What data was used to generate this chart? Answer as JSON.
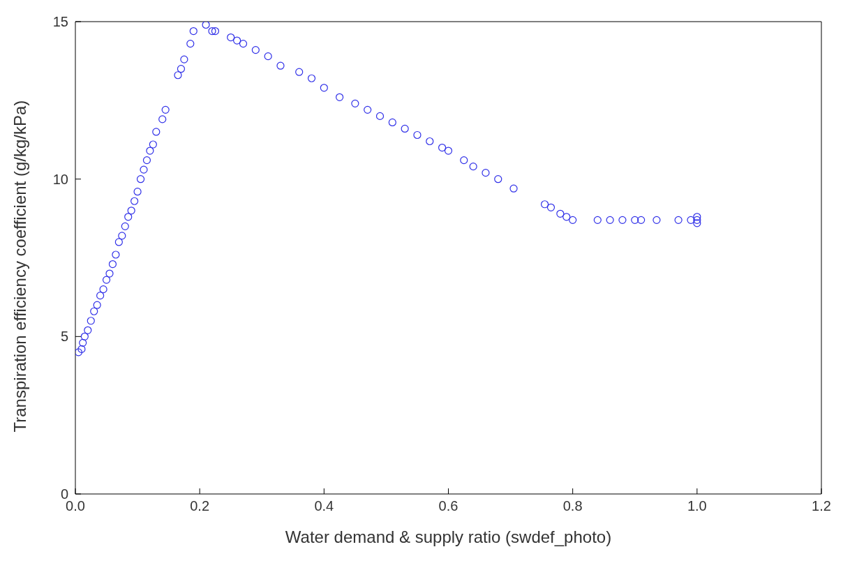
{
  "chart_data": {
    "type": "scatter",
    "xlabel": "Water demand & supply ratio (swdef_photo)",
    "ylabel": "Transpiration efficiency coefficient (g/kg/kPa)",
    "xlim": [
      0,
      1.2
    ],
    "ylim": [
      0,
      15
    ],
    "xticks": [
      {
        "value": 0,
        "label": "0.0"
      },
      {
        "value": 0.2,
        "label": "0.2"
      },
      {
        "value": 0.4,
        "label": "0.4"
      },
      {
        "value": 0.6,
        "label": "0.6"
      },
      {
        "value": 0.8,
        "label": "0.8"
      },
      {
        "value": 1,
        "label": "1.0"
      },
      {
        "value": 1.2,
        "label": "1.2"
      }
    ],
    "yticks": [
      0,
      5,
      10,
      15
    ],
    "grid": false,
    "marker": "circle",
    "series": [
      {
        "color": "#3030e8",
        "x": [
          0.005,
          0.01,
          0.012,
          0.015,
          0.02,
          0.025,
          0.03,
          0.035,
          0.04,
          0.045,
          0.05,
          0.055,
          0.06,
          0.065,
          0.07,
          0.075,
          0.08,
          0.085,
          0.09,
          0.095,
          0.1,
          0.105,
          0.11,
          0.115,
          0.12,
          0.125,
          0.13,
          0.14,
          0.145,
          0.165,
          0.17,
          0.175,
          0.185,
          0.19,
          0.21,
          0.22,
          0.225,
          0.25,
          0.26,
          0.27,
          0.29,
          0.31,
          0.33,
          0.36,
          0.38,
          0.4,
          0.425,
          0.45,
          0.47,
          0.49,
          0.51,
          0.53,
          0.55,
          0.57,
          0.59,
          0.6,
          0.625,
          0.64,
          0.66,
          0.68,
          0.705,
          0.755,
          0.765,
          0.78,
          0.79,
          0.8,
          0.84,
          0.86,
          0.88,
          0.9,
          0.91,
          0.935,
          0.97,
          0.99,
          1.0,
          1.0,
          1.0
        ],
        "values": [
          4.5,
          4.6,
          4.8,
          5.0,
          5.2,
          5.5,
          5.8,
          6.0,
          6.3,
          6.5,
          6.8,
          7.0,
          7.3,
          7.6,
          8.0,
          8.2,
          8.5,
          8.8,
          9.0,
          9.3,
          9.6,
          10.0,
          10.3,
          10.6,
          10.9,
          11.1,
          11.5,
          11.9,
          12.2,
          13.3,
          13.5,
          13.8,
          14.3,
          14.7,
          14.9,
          14.7,
          14.7,
          14.5,
          14.4,
          14.3,
          14.1,
          13.9,
          13.6,
          13.4,
          13.2,
          12.9,
          12.6,
          12.4,
          12.2,
          12.0,
          11.8,
          11.6,
          11.4,
          11.2,
          11.0,
          10.9,
          10.6,
          10.4,
          10.2,
          10.0,
          9.7,
          9.2,
          9.1,
          8.9,
          8.8,
          8.7,
          8.7,
          8.7,
          8.7,
          8.7,
          8.7,
          8.7,
          8.7,
          8.7,
          8.7,
          8.6,
          8.8
        ]
      }
    ]
  }
}
